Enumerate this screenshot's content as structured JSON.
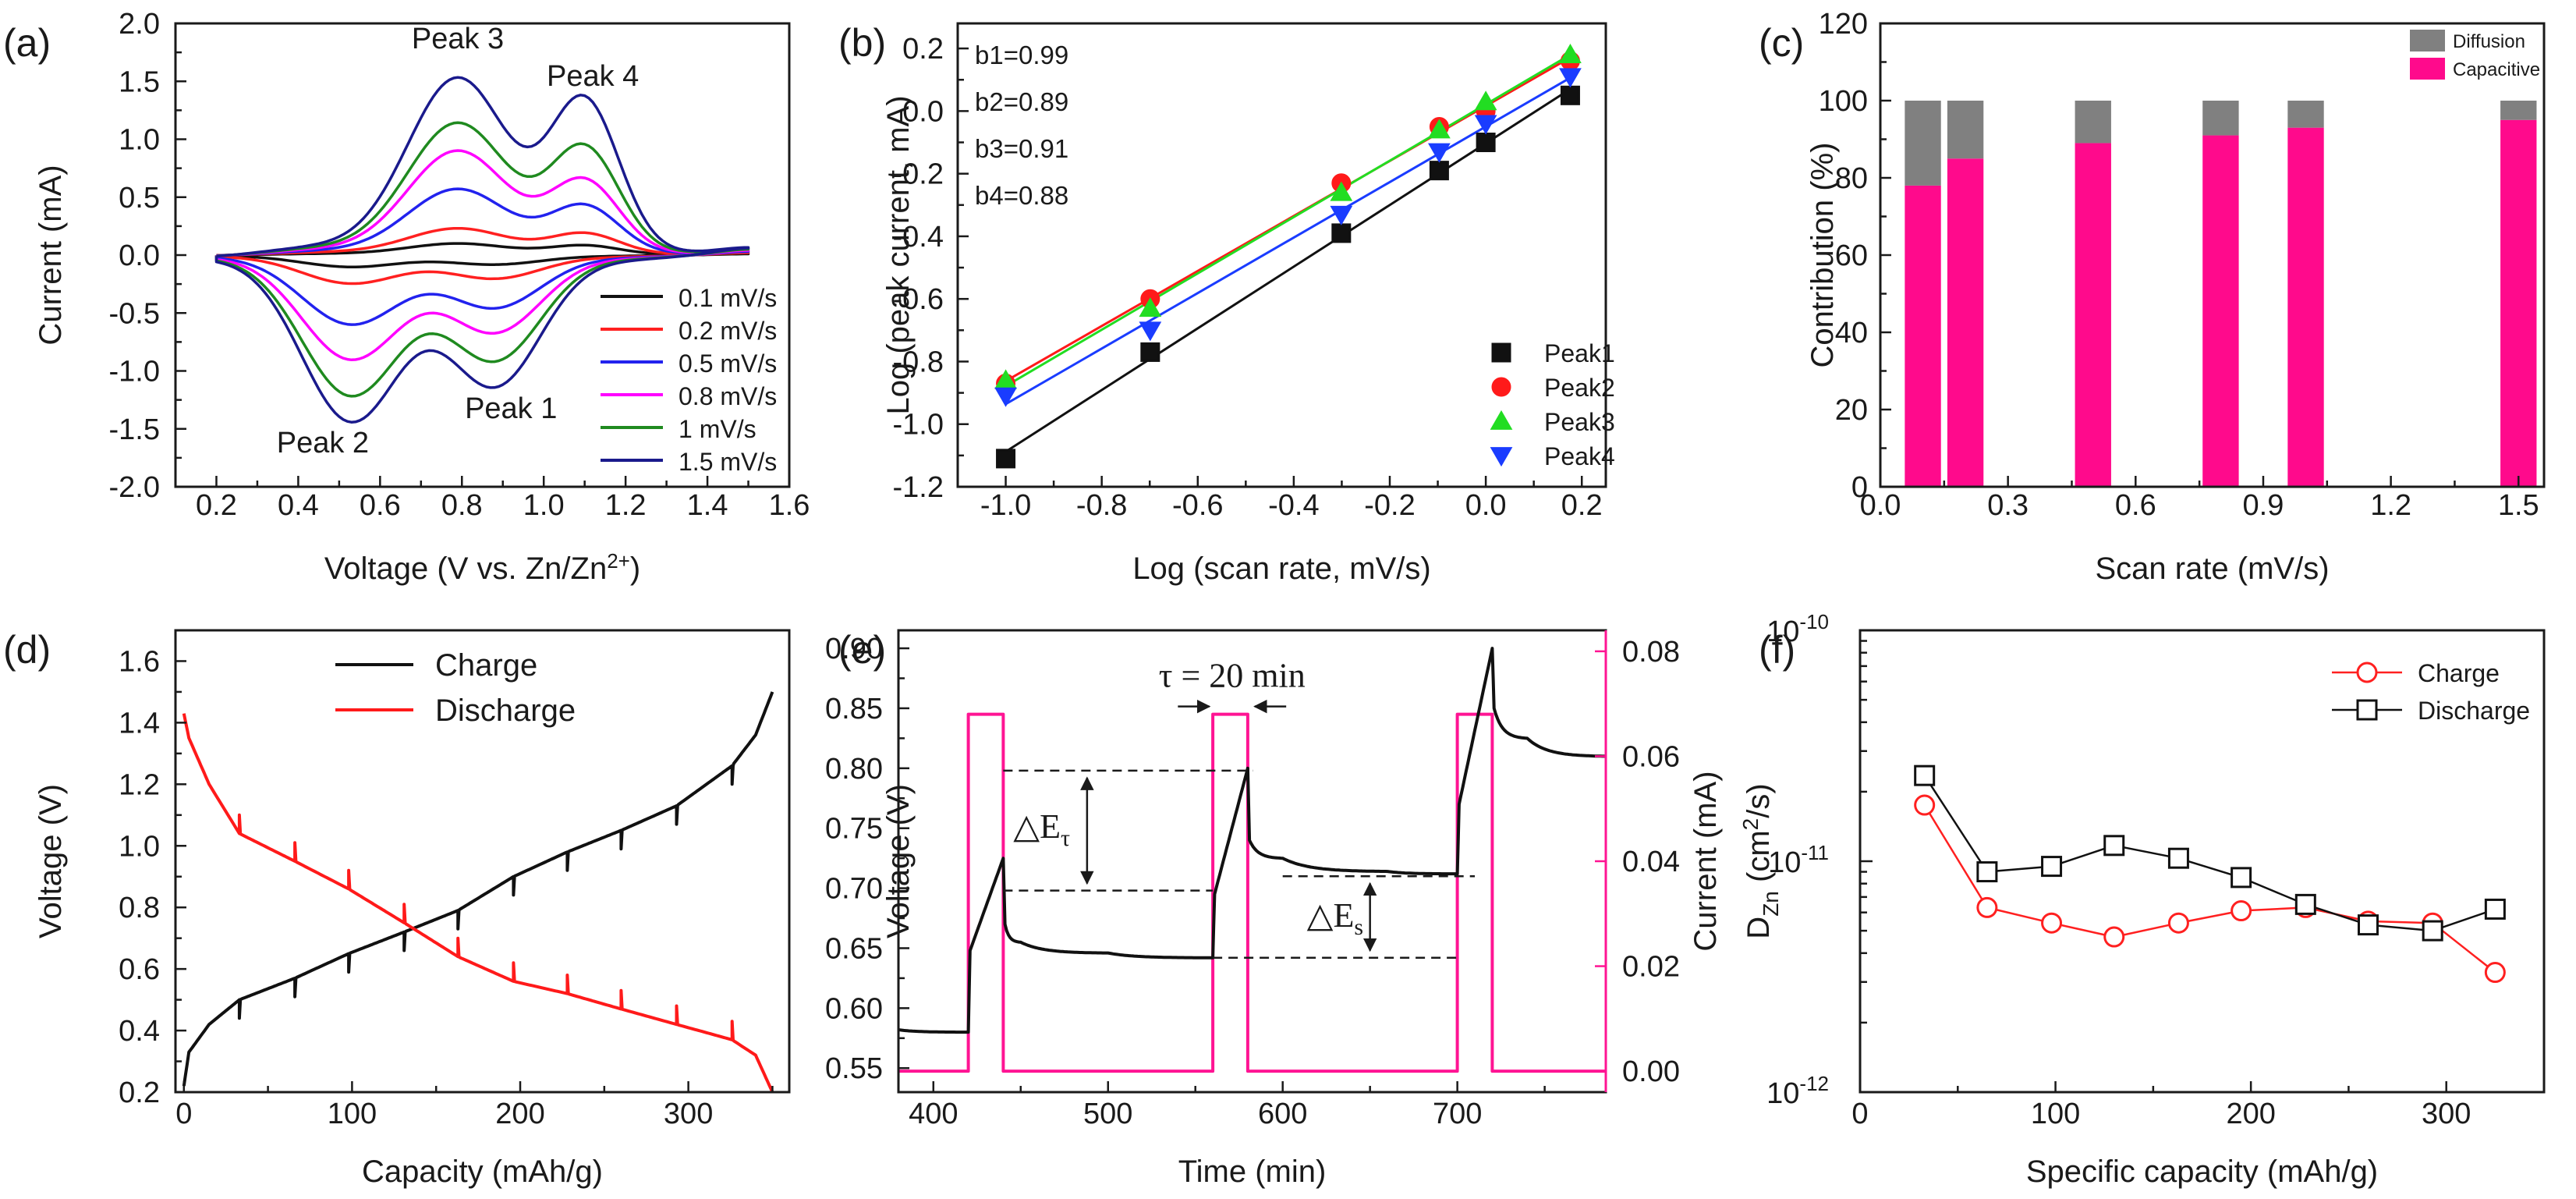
{
  "chart_data": [
    {
      "panel": "(a)",
      "type": "line",
      "xlabel": "Voltage (V vs. Zn/Zn",
      "xlabel_sup": "2+",
      "xlabel_close": ")",
      "ylabel": "Current (mA)",
      "xlim": [
        0.1,
        1.6
      ],
      "ylim": [
        -2.0,
        2.0
      ],
      "xticks": [
        "0.2",
        "0.4",
        "0.6",
        "0.8",
        "1.0",
        "1.2",
        "1.4",
        "1.6"
      ],
      "yticks": [
        "2.0",
        "1.5",
        "1.0",
        "0.5",
        "0.0",
        "-0.5",
        "-1.0",
        "-1.5",
        "-2.0"
      ],
      "series": [
        {
          "name": "0.1 mV/s",
          "color": "#111111",
          "ox_peak3": 0.1,
          "ox_peak4": 0.08,
          "red_peak2": -0.1,
          "red_peak1": -0.08
        },
        {
          "name": "0.2 mV/s",
          "color": "#ff2020",
          "ox_peak3": 0.23,
          "ox_peak4": 0.18,
          "red_peak2": -0.24,
          "red_peak1": -0.2
        },
        {
          "name": "0.5 mV/s",
          "color": "#2222ee",
          "ox_peak3": 0.57,
          "ox_peak4": 0.41,
          "red_peak2": -0.59,
          "red_peak1": -0.45
        },
        {
          "name": "0.8 mV/s",
          "color": "#ff00ff",
          "ox_peak3": 0.9,
          "ox_peak4": 0.62,
          "red_peak2": -0.89,
          "red_peak1": -0.66
        },
        {
          "name": "1 mV/s",
          "color": "#1f8a1f",
          "ox_peak3": 1.14,
          "ox_peak4": 0.9,
          "red_peak2": -1.2,
          "red_peak1": -0.9
        },
        {
          "name": "1.5 mV/s",
          "color": "#1a1a8c",
          "ox_peak3": 1.53,
          "ox_peak4": 1.3,
          "red_peak2": -1.42,
          "red_peak1": -1.12
        }
      ],
      "annotations": [
        "Peak 3",
        "Peak 4",
        "Peak 1",
        "Peak 2"
      ]
    },
    {
      "panel": "(b)",
      "type": "scatter",
      "xlabel": "Log (scan rate, mV/s)",
      "ylabel": "Log (peak current, mA)",
      "xlim": [
        -1.1,
        0.25
      ],
      "ylim": [
        -1.2,
        0.28
      ],
      "xticks": [
        "-1.0",
        "-0.8",
        "-0.6",
        "-0.4",
        "-0.2",
        "0.0",
        "0.2"
      ],
      "yticks": [
        "0.2",
        "0.0",
        "-0.2",
        "-0.4",
        "-0.6",
        "-0.8",
        "-1.0",
        "-1.2"
      ],
      "x": [
        -1.0,
        -0.699,
        -0.301,
        -0.097,
        0.0,
        0.176
      ],
      "series": [
        {
          "name": "Peak1",
          "color": "#111111",
          "marker": "square",
          "values": [
            -1.11,
            -0.77,
            -0.39,
            -0.19,
            -0.1,
            0.05
          ]
        },
        {
          "name": "Peak2",
          "color": "#ff1a1a",
          "marker": "circle",
          "values": [
            -0.87,
            -0.6,
            -0.23,
            -0.05,
            0.0,
            0.16
          ]
        },
        {
          "name": "Peak3",
          "color": "#22dd22",
          "marker": "triangle-up",
          "values": [
            -0.86,
            -0.63,
            -0.26,
            -0.06,
            0.03,
            0.18
          ]
        },
        {
          "name": "Peak4",
          "color": "#1a3cff",
          "marker": "triangle-down",
          "values": [
            -0.91,
            -0.7,
            -0.33,
            -0.13,
            -0.04,
            0.11
          ]
        }
      ],
      "annotations": [
        "b1=0.99",
        "b2=0.89",
        "b3=0.91",
        "b4=0.88"
      ]
    },
    {
      "panel": "(c)",
      "type": "bar",
      "xlabel": "Scan rate (mV/s)",
      "ylabel": "Contribution (%)",
      "xlim": [
        0.0,
        1.56
      ],
      "ylim": [
        0,
        120
      ],
      "xticks": [
        "0.0",
        "0.3",
        "0.6",
        "0.9",
        "1.2",
        "1.5"
      ],
      "yticks": [
        "120",
        "100",
        "80",
        "60",
        "40",
        "20",
        "0"
      ],
      "categories": [
        0.1,
        0.2,
        0.5,
        0.8,
        1.0,
        1.5
      ],
      "series": [
        {
          "name": "Capacitive",
          "color": "#ff0a8c",
          "values": [
            78,
            85,
            89,
            91,
            93,
            95
          ]
        },
        {
          "name": "Diffusion",
          "color": "#808080",
          "values": [
            22,
            15,
            11,
            9,
            7,
            5
          ]
        }
      ]
    },
    {
      "panel": "(d)",
      "type": "line",
      "xlabel": "Capacity (mAh/g)",
      "ylabel": "Voltage (V)",
      "xlim": [
        -5,
        360
      ],
      "ylim": [
        0.2,
        1.7
      ],
      "xticks": [
        "0",
        "100",
        "200",
        "300"
      ],
      "yticks": [
        "1.6",
        "1.4",
        "1.2",
        "1.0",
        "0.8",
        "0.6",
        "0.4",
        "0.2"
      ],
      "series": [
        {
          "name": "Charge",
          "color": "#111111",
          "x": [
            0,
            3,
            15,
            33,
            66,
            98,
            131,
            163,
            196,
            228,
            260,
            293,
            326,
            340,
            350
          ],
          "values": [
            0.22,
            0.33,
            0.42,
            0.5,
            0.57,
            0.65,
            0.72,
            0.79,
            0.9,
            0.98,
            1.05,
            1.13,
            1.26,
            1.36,
            1.5
          ]
        },
        {
          "name": "Discharge",
          "color": "#ff1a1a",
          "x": [
            0,
            3,
            15,
            33,
            66,
            98,
            131,
            163,
            196,
            228,
            260,
            293,
            326,
            340,
            350
          ],
          "values": [
            1.43,
            1.35,
            1.2,
            1.04,
            0.95,
            0.86,
            0.75,
            0.64,
            0.56,
            0.52,
            0.47,
            0.42,
            0.37,
            0.32,
            0.2
          ]
        }
      ]
    },
    {
      "panel": "(e)",
      "type": "line",
      "xlabel": "Time (min)",
      "ylabel": "Voltage (V)",
      "ylabel_right": "Current (mA)",
      "xlim": [
        380,
        785
      ],
      "ylim": [
        0.53,
        0.915
      ],
      "ylim_right": [
        -0.004,
        0.084
      ],
      "xticks": [
        "400",
        "500",
        "600",
        "700"
      ],
      "yticks": [
        "0.90",
        "0.85",
        "0.80",
        "0.75",
        "0.70",
        "0.65",
        "0.60",
        "0.55"
      ],
      "yticks_right": [
        "0.08",
        "0.06",
        "0.04",
        "0.02",
        "0.00"
      ],
      "series": [
        {
          "name": "Voltage",
          "color": "#111111",
          "x": [
            380,
            420,
            421,
            440,
            441,
            450,
            500,
            560,
            561,
            580,
            581,
            600,
            660,
            700,
            701,
            720,
            721,
            740,
            785
          ],
          "values": [
            0.582,
            0.58,
            0.648,
            0.725,
            0.67,
            0.655,
            0.646,
            0.642,
            0.695,
            0.8,
            0.74,
            0.725,
            0.714,
            0.712,
            0.77,
            0.9,
            0.85,
            0.825,
            0.81
          ]
        },
        {
          "name": "Current",
          "color": "#ff1493",
          "axis": "right",
          "x": [
            380,
            420,
            420,
            440,
            440,
            560,
            560,
            580,
            580,
            700,
            700,
            720,
            720,
            785
          ],
          "values": [
            0,
            0,
            0.068,
            0.068,
            0,
            0,
            0.068,
            0.068,
            0,
            0,
            0.068,
            0.068,
            0,
            0
          ]
        }
      ],
      "annotations": [
        "τ = 20 min",
        "△E",
        "τ",
        "△E",
        "s"
      ]
    },
    {
      "panel": "(f)",
      "type": "line",
      "yscale": "log",
      "xlabel": "Specific capacity (mAh/g)",
      "ylabel": "D",
      "ylabel_sub": "Zn",
      "ylabel_rest": " (cm",
      "ylabel_sup": "2",
      "ylabel_end": "/s)",
      "xlim": [
        0,
        350
      ],
      "ylim": [
        1e-12,
        1e-10
      ],
      "xticks": [
        "0",
        "100",
        "200",
        "300"
      ],
      "yticks": [
        {
          "base": "10",
          "exp": "-10"
        },
        {
          "base": "10",
          "exp": "-11"
        },
        {
          "base": "10",
          "exp": "-12"
        }
      ],
      "x": [
        33,
        65,
        98,
        130,
        163,
        195,
        228,
        260,
        293,
        325
      ],
      "series": [
        {
          "name": "Charge",
          "color": "#ff2020",
          "marker": "circle",
          "values": [
            1.75e-11,
            6.3e-12,
            5.4e-12,
            4.7e-12,
            5.4e-12,
            6.1e-12,
            6.3e-12,
            5.5e-12,
            5.4e-12,
            3.3e-12
          ]
        },
        {
          "name": "Discharge",
          "color": "#111111",
          "marker": "square",
          "values": [
            2.35e-11,
            9e-12,
            9.5e-12,
            1.17e-11,
            1.03e-11,
            8.5e-12,
            6.5e-12,
            5.3e-12,
            5e-12,
            6.2e-12
          ]
        }
      ]
    }
  ]
}
